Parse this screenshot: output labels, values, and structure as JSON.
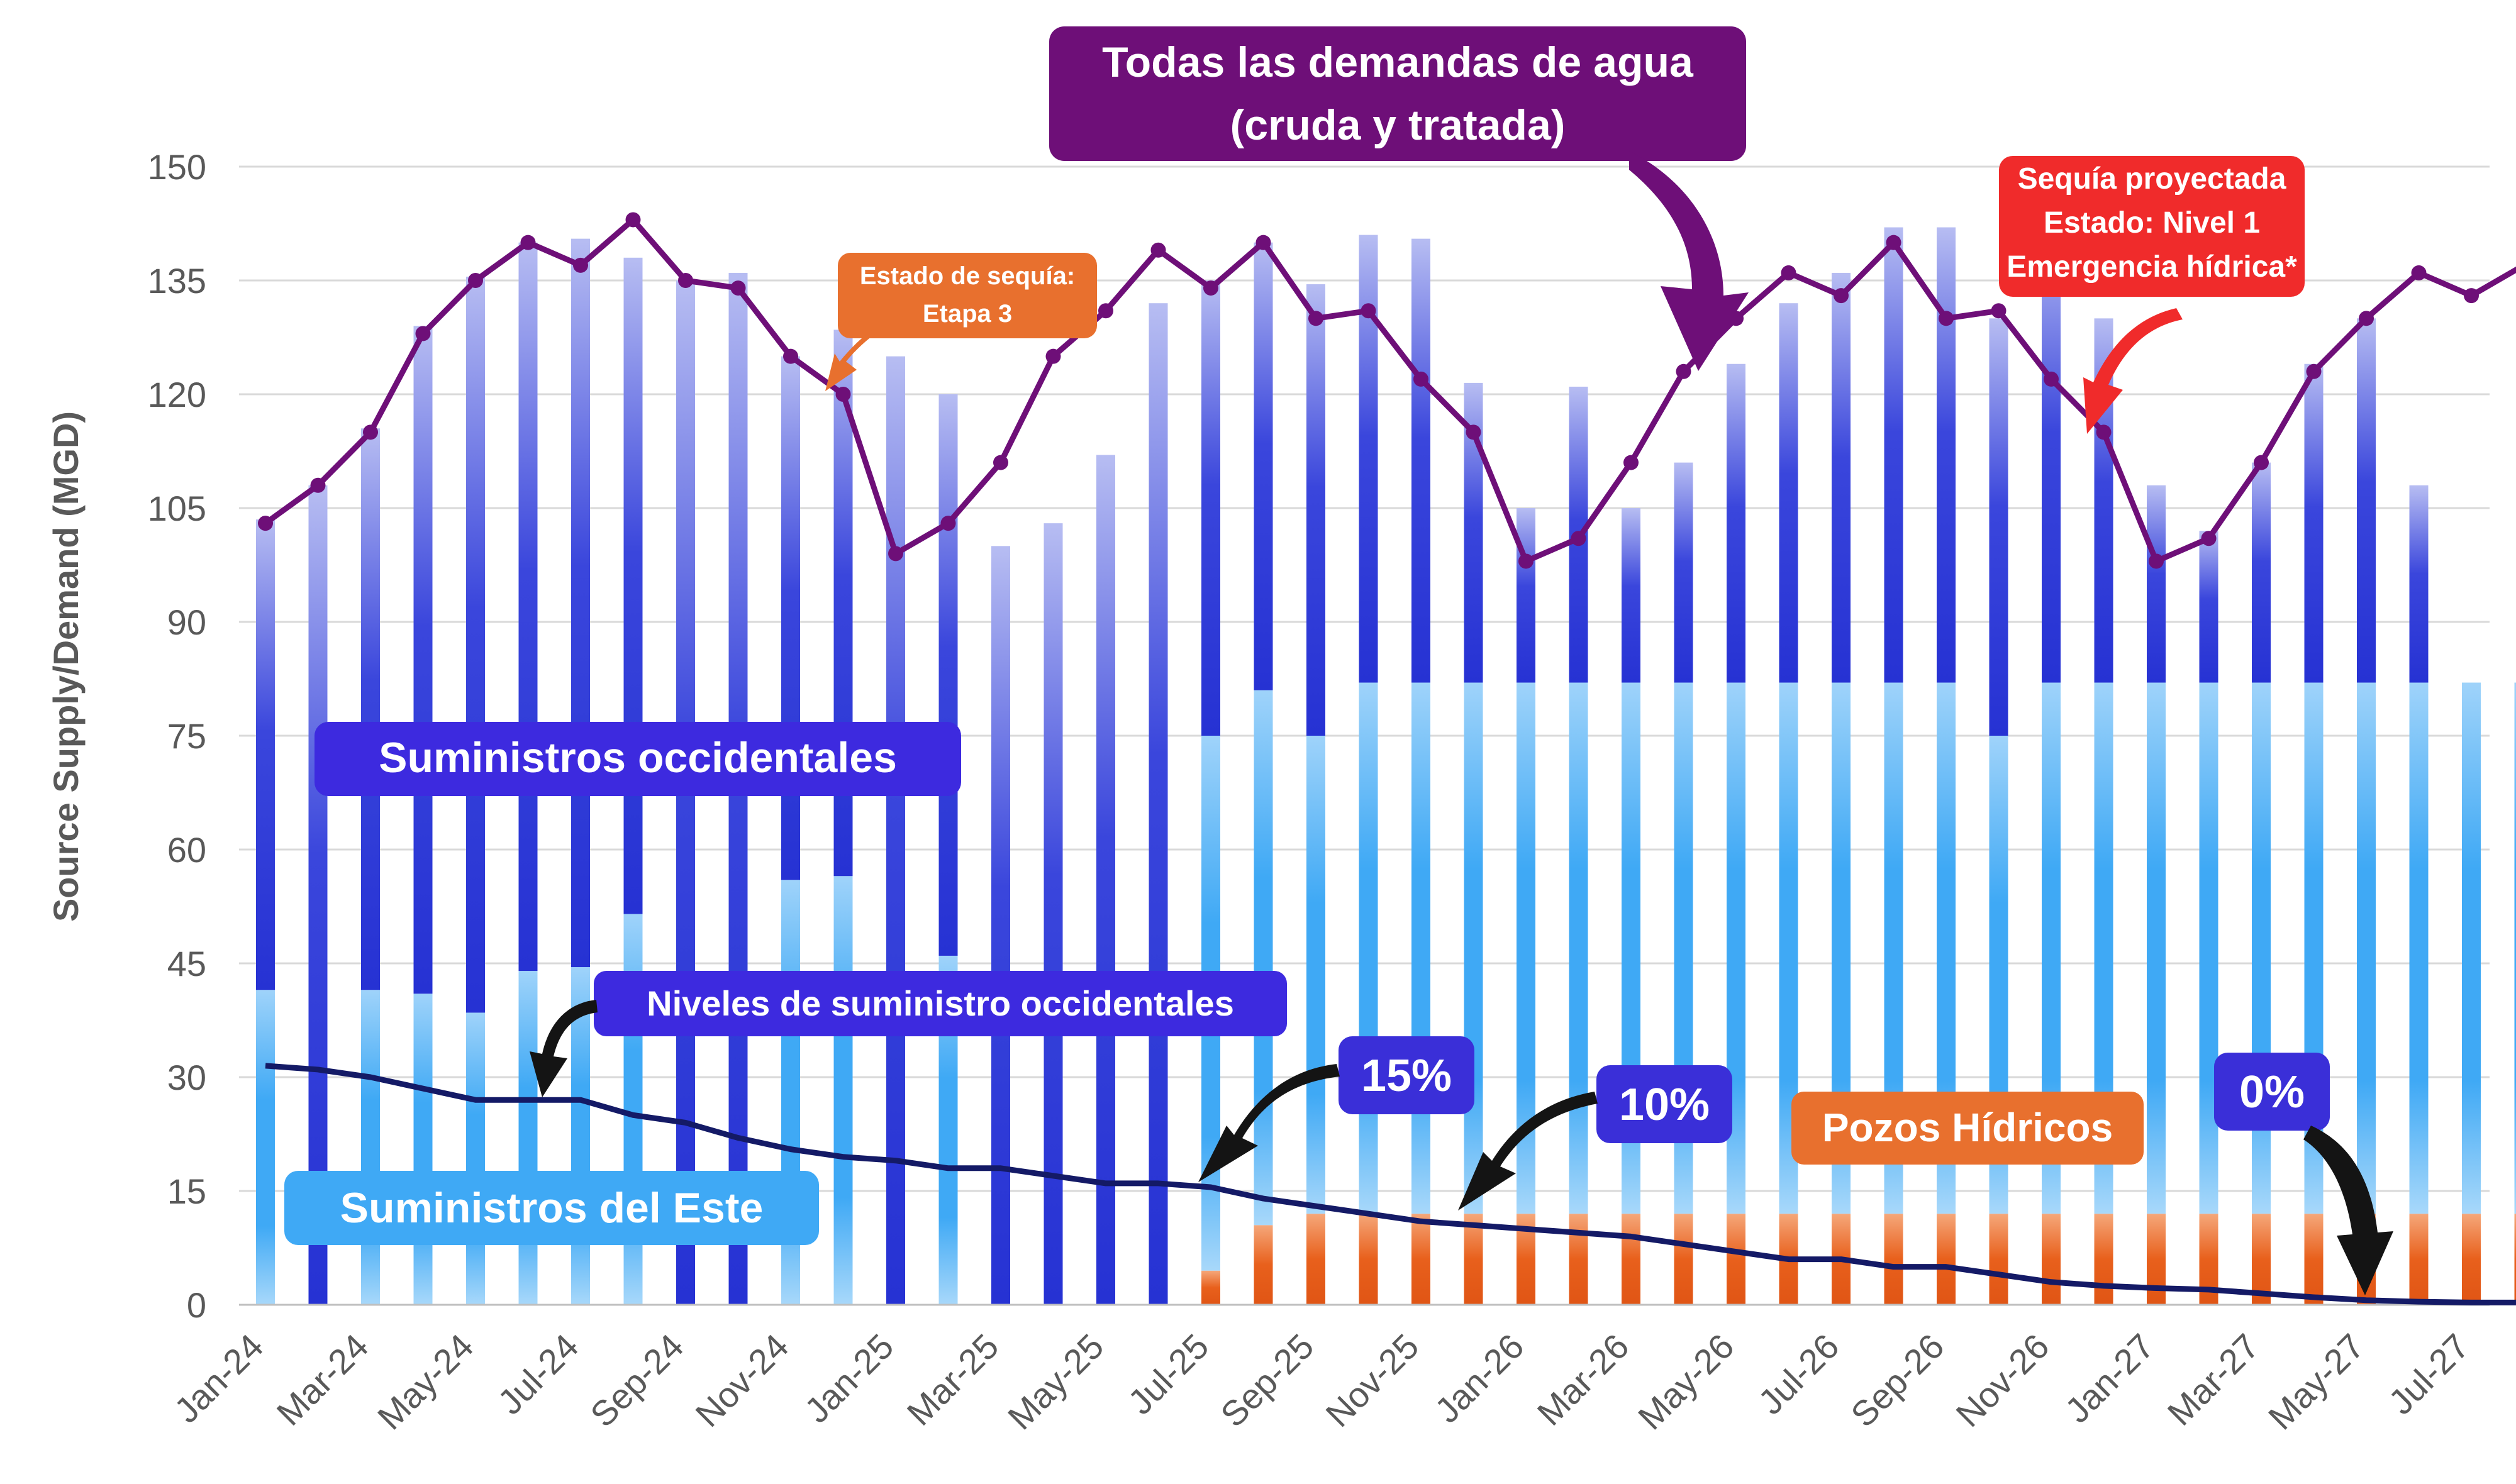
{
  "chart_data": {
    "type": "bar",
    "ylabel": "Source Supply/Demand (MGD)",
    "ylim": [
      0,
      150
    ],
    "y_ticks": [
      0,
      15,
      30,
      45,
      60,
      75,
      90,
      105,
      120,
      135,
      150
    ],
    "grid": true,
    "categories": [
      "Jan-24",
      "Feb-24",
      "Mar-24",
      "Apr-24",
      "May-24",
      "Jun-24",
      "Jul-24",
      "Aug-24",
      "Sep-24",
      "Oct-24",
      "Nov-24",
      "Dec-24",
      "Jan-25",
      "Feb-25",
      "Mar-25",
      "Apr-25",
      "May-25",
      "Jun-25",
      "Jul-25",
      "Aug-25",
      "Sep-25",
      "Oct-25",
      "Nov-25",
      "Dec-25",
      "Jan-26",
      "Feb-26",
      "Mar-26",
      "Apr-26",
      "May-26",
      "Jun-26",
      "Jul-26",
      "Aug-26",
      "Sep-26",
      "Oct-26",
      "Nov-26",
      "Dec-26",
      "Jan-27",
      "Feb-27",
      "Mar-27",
      "Apr-27",
      "May-27",
      "Jun-27",
      "Jul-27",
      "Aug-27"
    ],
    "x_tick_labels": [
      "Jan-24",
      "Mar-24",
      "May-24",
      "Jul-24",
      "Sep-24",
      "Nov-24",
      "Jan-25",
      "Mar-25",
      "May-25",
      "Jul-25",
      "Sep-25",
      "Nov-25",
      "Jan-26",
      "Mar-26",
      "May-26",
      "Jul-26",
      "Sep-26",
      "Nov-26",
      "Jan-27",
      "Mar-27",
      "May-27",
      "Jul-27"
    ],
    "series": [
      {
        "name": "Pozos Hídricos",
        "color": "#E8601C",
        "values": [
          0,
          0,
          0,
          0,
          0,
          0,
          0,
          0,
          0,
          0,
          0,
          0,
          0,
          0,
          0,
          0,
          0,
          0,
          4.5,
          10.5,
          12,
          12,
          12,
          12,
          12,
          12,
          12,
          12,
          12,
          12,
          12,
          12,
          12,
          12,
          12,
          12,
          12,
          12,
          12,
          12,
          12,
          12,
          12,
          12
        ]
      },
      {
        "name": "Suministros del Este",
        "color": "#3FA9F5",
        "values": [
          41.5,
          0,
          41.5,
          41,
          38.5,
          44,
          44.5,
          51.5,
          0,
          0,
          56,
          56.5,
          0,
          46,
          0,
          0,
          0,
          0,
          70.5,
          70.5,
          63,
          70,
          70,
          70,
          70,
          70,
          70,
          70,
          70,
          70,
          70,
          70,
          70,
          63,
          70,
          70,
          70,
          70,
          70,
          70,
          70,
          70,
          70,
          70
        ]
      },
      {
        "name": "Suministros occidentales",
        "color": "#3341D9",
        "values": [
          62,
          108,
          74,
          88,
          97,
          96,
          96,
          86.5,
          135,
          136,
          69,
          72,
          125,
          74,
          100,
          103,
          112,
          132,
          60,
          59,
          59.5,
          59,
          58.5,
          39.5,
          23,
          39,
          23,
          29,
          42,
          50,
          54,
          60,
          60,
          55,
          60,
          48,
          26,
          20,
          29,
          42,
          48,
          26,
          0,
          0
        ]
      }
    ],
    "demand_series": {
      "name": "Todas las demandas de agua (cruda y tratada)",
      "color": "#6E0F78",
      "values": [
        103,
        108,
        115,
        128,
        135,
        140,
        137,
        143,
        135,
        134,
        125,
        120,
        99,
        103,
        111,
        125,
        131,
        139,
        134,
        140,
        130,
        131,
        122,
        115,
        98,
        101,
        111,
        123,
        130,
        136,
        133,
        140,
        130,
        131,
        122,
        115,
        98,
        101,
        111,
        123,
        130,
        136,
        133,
        137
      ]
    },
    "supply_level_series": {
      "name": "Niveles de suministro occidentales",
      "color": "#141A66",
      "values": [
        31.5,
        31,
        30,
        28.5,
        27,
        27,
        27,
        25,
        24,
        22,
        20.5,
        19.5,
        19,
        18,
        18,
        17,
        16,
        16,
        15.5,
        14,
        13,
        12,
        11,
        10.5,
        10,
        9.5,
        9,
        8,
        7,
        6,
        6,
        5,
        5,
        4,
        3,
        2.5,
        2.2,
        2,
        1.5,
        1,
        0.6,
        0.4,
        0.3,
        0.3
      ]
    },
    "annotations": {
      "demand_title_line1": "Todas las demandas de agua",
      "demand_title_line2": "(cruda y tratada)",
      "stage3_line1": "Estado de sequía:",
      "stage3_line2": "Etapa 3",
      "projected_line1": "Sequía proyectada",
      "projected_line2": "Estado: Nivel 1",
      "projected_line3": "Emergencia hídrica*",
      "western_supplies": "Suministros occidentales",
      "eastern_supplies": "Suministros del Este",
      "supply_levels": "Niveles de suministro occidentales",
      "wells": "Pozos Hídricos",
      "pct15": "15%",
      "pct10": "10%",
      "pct0": "0%"
    },
    "colors": {
      "demand": "#6E0F78",
      "western": "#3341D9",
      "eastern": "#3FA9F5",
      "wells": "#E8601C",
      "stage3_box": "#E8702E",
      "projected_box": "#F02B2B",
      "pct_box": "#3A2FD8",
      "level_line": "#141A66"
    }
  }
}
